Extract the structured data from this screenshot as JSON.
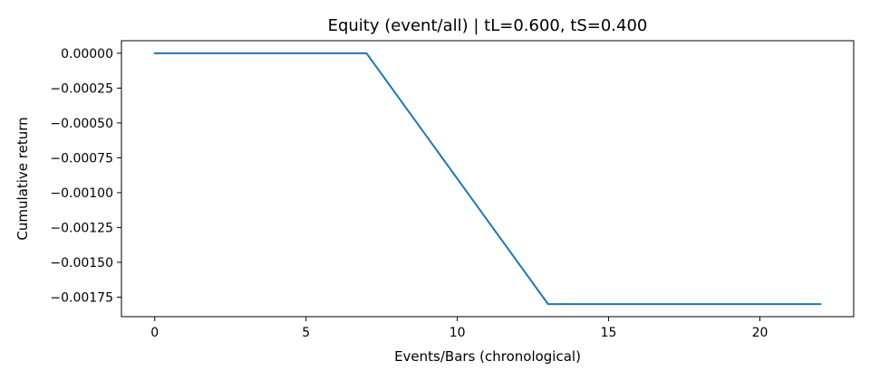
{
  "chart_data": {
    "type": "line",
    "title": "Equity (event/all) | tL=0.600, tS=0.400",
    "xlabel": "Events/Bars (chronological)",
    "ylabel": "Cumulative return",
    "xlim": [
      -1.1,
      23.1
    ],
    "ylim": [
      -0.00189,
      9e-05
    ],
    "xticks": [
      0,
      5,
      10,
      15,
      20
    ],
    "xtick_labels": [
      "0",
      "5",
      "10",
      "15",
      "20"
    ],
    "yticks": [
      0,
      -0.00025,
      -0.0005,
      -0.00075,
      -0.001,
      -0.00125,
      -0.0015,
      -0.00175
    ],
    "ytick_labels": [
      "0.00000",
      "−0.00025",
      "−0.00050",
      "−0.00075",
      "−0.00100",
      "−0.00125",
      "−0.00150",
      "−0.00175"
    ],
    "grid": false,
    "line_color": "#1f77b4",
    "series": [
      {
        "x": [
          0,
          1,
          2,
          3,
          4,
          5,
          6,
          7,
          8,
          9,
          10,
          11,
          12,
          13,
          14,
          15,
          16,
          17,
          18,
          19,
          20,
          21,
          22
        ],
        "values": [
          0,
          0,
          0,
          0,
          0,
          0,
          0,
          0,
          -0.0003,
          -0.0006,
          -0.0009,
          -0.0012,
          -0.0015,
          -0.0018,
          -0.0018,
          -0.0018,
          -0.0018,
          -0.0018,
          -0.0018,
          -0.0018,
          -0.0018,
          -0.0018,
          -0.0018
        ]
      }
    ]
  }
}
